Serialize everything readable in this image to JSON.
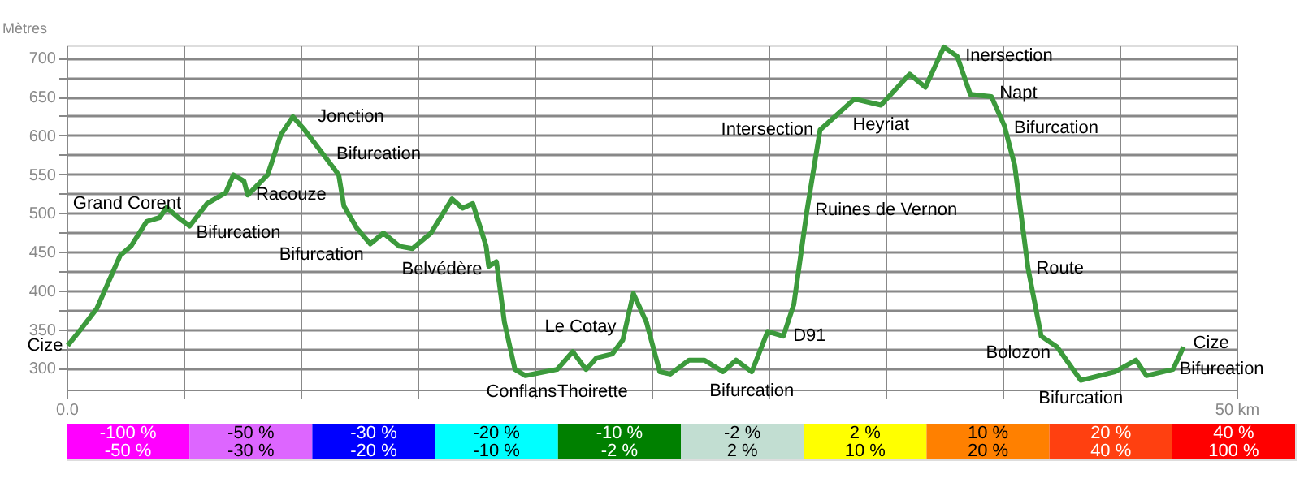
{
  "chart_data": [
    {
      "type": "line",
      "ylabel": "Mètres",
      "xlim": [
        0,
        50
      ],
      "ylim": [
        272,
        716
      ],
      "xticks": [
        {
          "value": 0,
          "label": "0.0"
        },
        {
          "value": 5,
          "label": null
        },
        {
          "value": 10,
          "label": null
        },
        {
          "value": 15,
          "label": null
        },
        {
          "value": 20,
          "label": null
        },
        {
          "value": 25,
          "label": null
        },
        {
          "value": 30,
          "label": null
        },
        {
          "value": 35,
          "label": null
        },
        {
          "value": 40,
          "label": null
        },
        {
          "value": 45,
          "label": null
        },
        {
          "value": 50,
          "label": "50 km"
        }
      ],
      "yticks": [
        300,
        {
          "value": 325,
          "label": null
        },
        350,
        {
          "value": 375,
          "label": null
        },
        400,
        {
          "value": 425,
          "label": null
        },
        450,
        {
          "value": 475,
          "label": null
        },
        500,
        {
          "value": 525,
          "label": null
        },
        550,
        {
          "value": 575,
          "label": null
        },
        600,
        {
          "value": 625,
          "label": null
        },
        650,
        {
          "value": 675,
          "label": null
        },
        700
      ],
      "grid": true,
      "line_style": "solid",
      "series": [
        {
          "color": "#3c9a3c",
          "x": [
            0.05,
            0.61,
            1.28,
            2.29,
            2.75,
            3.42,
            3.98,
            4.27,
            4.77,
            5.26,
            6.0,
            6.8,
            7.13,
            7.58,
            7.74,
            8.59,
            9.16,
            9.67,
            10.17,
            11.18,
            11.63,
            11.85,
            12.41,
            12.98,
            13.54,
            14.22,
            14.78,
            15.57,
            16.47,
            16.92,
            17.36,
            17.93,
            18.04,
            18.37,
            18.71,
            19.16,
            19.61,
            20.96,
            21.63,
            22.2,
            22.65,
            23.32,
            23.77,
            24.22,
            24.78,
            25.35,
            25.8,
            26.6,
            27.26,
            28.05,
            28.61,
            29.28,
            29.96,
            30.63,
            31.08,
            31.64,
            32.2,
            33.67,
            34.8,
            36.03,
            36.7,
            37.49,
            38.06,
            38.62,
            39.52,
            40.07,
            40.52,
            41.09,
            41.65,
            42.33,
            43.34,
            44.8,
            45.7,
            46.15,
            47.28,
            47.73
          ],
          "values": [
            329,
            350,
            376,
            445,
            457,
            489,
            494,
            507,
            494,
            483,
            512,
            526,
            549,
            541,
            523,
            549,
            601,
            624,
            607,
            567,
            549,
            509,
            480,
            460,
            474,
            457,
            454,
            474,
            518,
            506,
            512,
            457,
            431,
            437,
            359,
            298,
            290,
            298,
            321,
            298,
            313,
            318,
            336,
            396,
            359,
            295,
            292,
            310,
            310,
            295,
            310,
            295,
            347,
            341,
            382,
            503,
            607,
            647,
            639,
            679,
            662,
            714,
            702,
            653,
            650,
            613,
            561,
            428,
            341,
            327,
            284,
            295,
            310,
            290,
            298,
            327
          ]
        }
      ],
      "annotations": [
        {
          "text": "Cize",
          "x": 0.05,
          "y": 329
        },
        {
          "text": "Grand Corent",
          "x": 3.42,
          "y": 489
        },
        {
          "text": "Bifurcation",
          "x": 5.26,
          "y": 483
        },
        {
          "text": "Racouze",
          "x": 7.74,
          "y": 523
        },
        {
          "text": "Jonction",
          "x": 10.17,
          "y": 607
        },
        {
          "text": "Bifurcation",
          "x": 11.18,
          "y": 567
        },
        {
          "text": "Bifurcation",
          "x": 14.78,
          "y": 454
        },
        {
          "text": "Belvédère",
          "x": 18.04,
          "y": 431
        },
        {
          "text": "Conflans",
          "x": 19.16,
          "y": 298
        },
        {
          "text": "Le Cotay",
          "x": 23.77,
          "y": 336
        },
        {
          "text": "Thoirette",
          "x": 22.2,
          "y": 298
        },
        {
          "text": "Bifurcation",
          "x": 29.28,
          "y": 295
        },
        {
          "text": "D91",
          "x": 30.63,
          "y": 341
        },
        {
          "text": "Ruines de Vernon",
          "x": 31.64,
          "y": 503
        },
        {
          "text": "Intersection",
          "x": 32.2,
          "y": 607
        },
        {
          "text": "Heyriat",
          "x": 34.8,
          "y": 639
        },
        {
          "text": "Inersection",
          "x": 38.06,
          "y": 702
        },
        {
          "text": "Napt",
          "x": 39.52,
          "y": 650
        },
        {
          "text": "Bifurcation",
          "x": 40.07,
          "y": 613
        },
        {
          "text": "Route",
          "x": 41.09,
          "y": 428
        },
        {
          "text": "Bolozon",
          "x": 42.33,
          "y": 327
        },
        {
          "text": "Bifurcation",
          "x": 43.34,
          "y": 284
        },
        {
          "text": "Bifurcation",
          "x": 47.28,
          "y": 298
        },
        {
          "text": "Cize",
          "x": 47.73,
          "y": 327
        }
      ]
    },
    {
      "type": "other",
      "categories": [
        "-100 %",
        "-50 %",
        "-30 %",
        "-20 %",
        "-10 %",
        "-2 %",
        "2 %",
        "10 %",
        "20 %",
        "40 %"
      ],
      "annotations": [
        "-50 %",
        "-30 %",
        "-20 %",
        "-10 %",
        "-2 %",
        "2 %",
        "10 %",
        "20 %",
        "40 %",
        "100 %"
      ],
      "colors": [
        "#ff00ff",
        "#dd66ff",
        "#0000ff",
        "#00ffff",
        "#008000",
        "#c2ded2",
        "#ffff00",
        "#ff8000",
        "#ff4010",
        "#ff0000"
      ]
    }
  ]
}
